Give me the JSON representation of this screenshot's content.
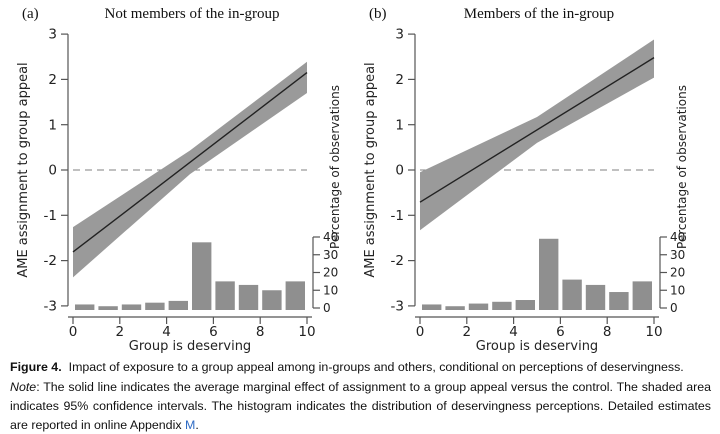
{
  "style": {
    "ci_band_color": "#9a9a9a",
    "histogram_bar_color": "#8f8f8f",
    "ame_line_color": "#222222",
    "zero_dash_color": "#808080",
    "axis_color": "#555555",
    "link_color": "#2e6bc4"
  },
  "chart_data": [
    {
      "type": "line",
      "panel_label": "(a)",
      "title": "Not members of the in-group",
      "xlabel": "Group is deserving",
      "ylabel": "AME assignment to group appeal",
      "y2label": "Percentage of observations",
      "xlim": [
        0,
        10
      ],
      "ylim": [
        -3,
        3
      ],
      "y2lim": [
        0,
        40
      ],
      "x_ticks": [
        0,
        2,
        4,
        6,
        8,
        10
      ],
      "y_ticks": [
        -3,
        -2,
        -1,
        0,
        1,
        2,
        3
      ],
      "y2_ticks": [
        0,
        10,
        20,
        30,
        40
      ],
      "zero_line_y": 0,
      "ame_line": {
        "x": [
          0,
          10
        ],
        "y": [
          -1.81,
          2.15
        ]
      },
      "ci_band": {
        "x": [
          0,
          5,
          10
        ],
        "upper": [
          -1.26,
          0.43,
          2.39
        ],
        "lower": [
          -2.37,
          -0.09,
          1.7
        ]
      },
      "histogram": {
        "bin_start": 0,
        "bin_width": 1,
        "percent": [
          2,
          1,
          2,
          3,
          4,
          37,
          15,
          13,
          10,
          15
        ]
      }
    },
    {
      "type": "line",
      "panel_label": "(b)",
      "title": "Members of the in-group",
      "xlabel": "Group is deserving",
      "ylabel": "AME assignment to group appeal",
      "y2label": "Percentage of observations",
      "xlim": [
        0,
        10
      ],
      "ylim": [
        -3,
        3
      ],
      "y2lim": [
        0,
        40
      ],
      "x_ticks": [
        0,
        2,
        4,
        6,
        8,
        10
      ],
      "y_ticks": [
        -3,
        -2,
        -1,
        0,
        1,
        2,
        3
      ],
      "y2_ticks": [
        0,
        10,
        20,
        30,
        40
      ],
      "zero_line_y": 0,
      "ame_line": {
        "x": [
          0,
          10
        ],
        "y": [
          -0.71,
          2.48
        ]
      },
      "ci_band": {
        "x": [
          0,
          5,
          10
        ],
        "upper": [
          -0.05,
          1.17,
          2.88
        ],
        "lower": [
          -1.33,
          0.6,
          2.04
        ]
      },
      "histogram": {
        "bin_start": 0,
        "bin_width": 1,
        "percent": [
          2,
          1,
          2.5,
          3.5,
          4.5,
          39,
          16,
          13,
          9,
          15
        ]
      }
    }
  ],
  "caption": {
    "figure_label": "Figure 4.",
    "title_text": "Impact of exposure to a group appeal among in-groups and others, conditional on perceptions of deservingness.",
    "note_label": "Note",
    "note_body": ": The solid line indicates the average marginal effect of assignment to a group appeal versus the control. The shaded area indicates 95% confidence intervals. The histogram indicates the distribution of deservingness perceptions. Detailed estimates are reported in online Appendix ",
    "link_text": "M",
    "period": "."
  }
}
